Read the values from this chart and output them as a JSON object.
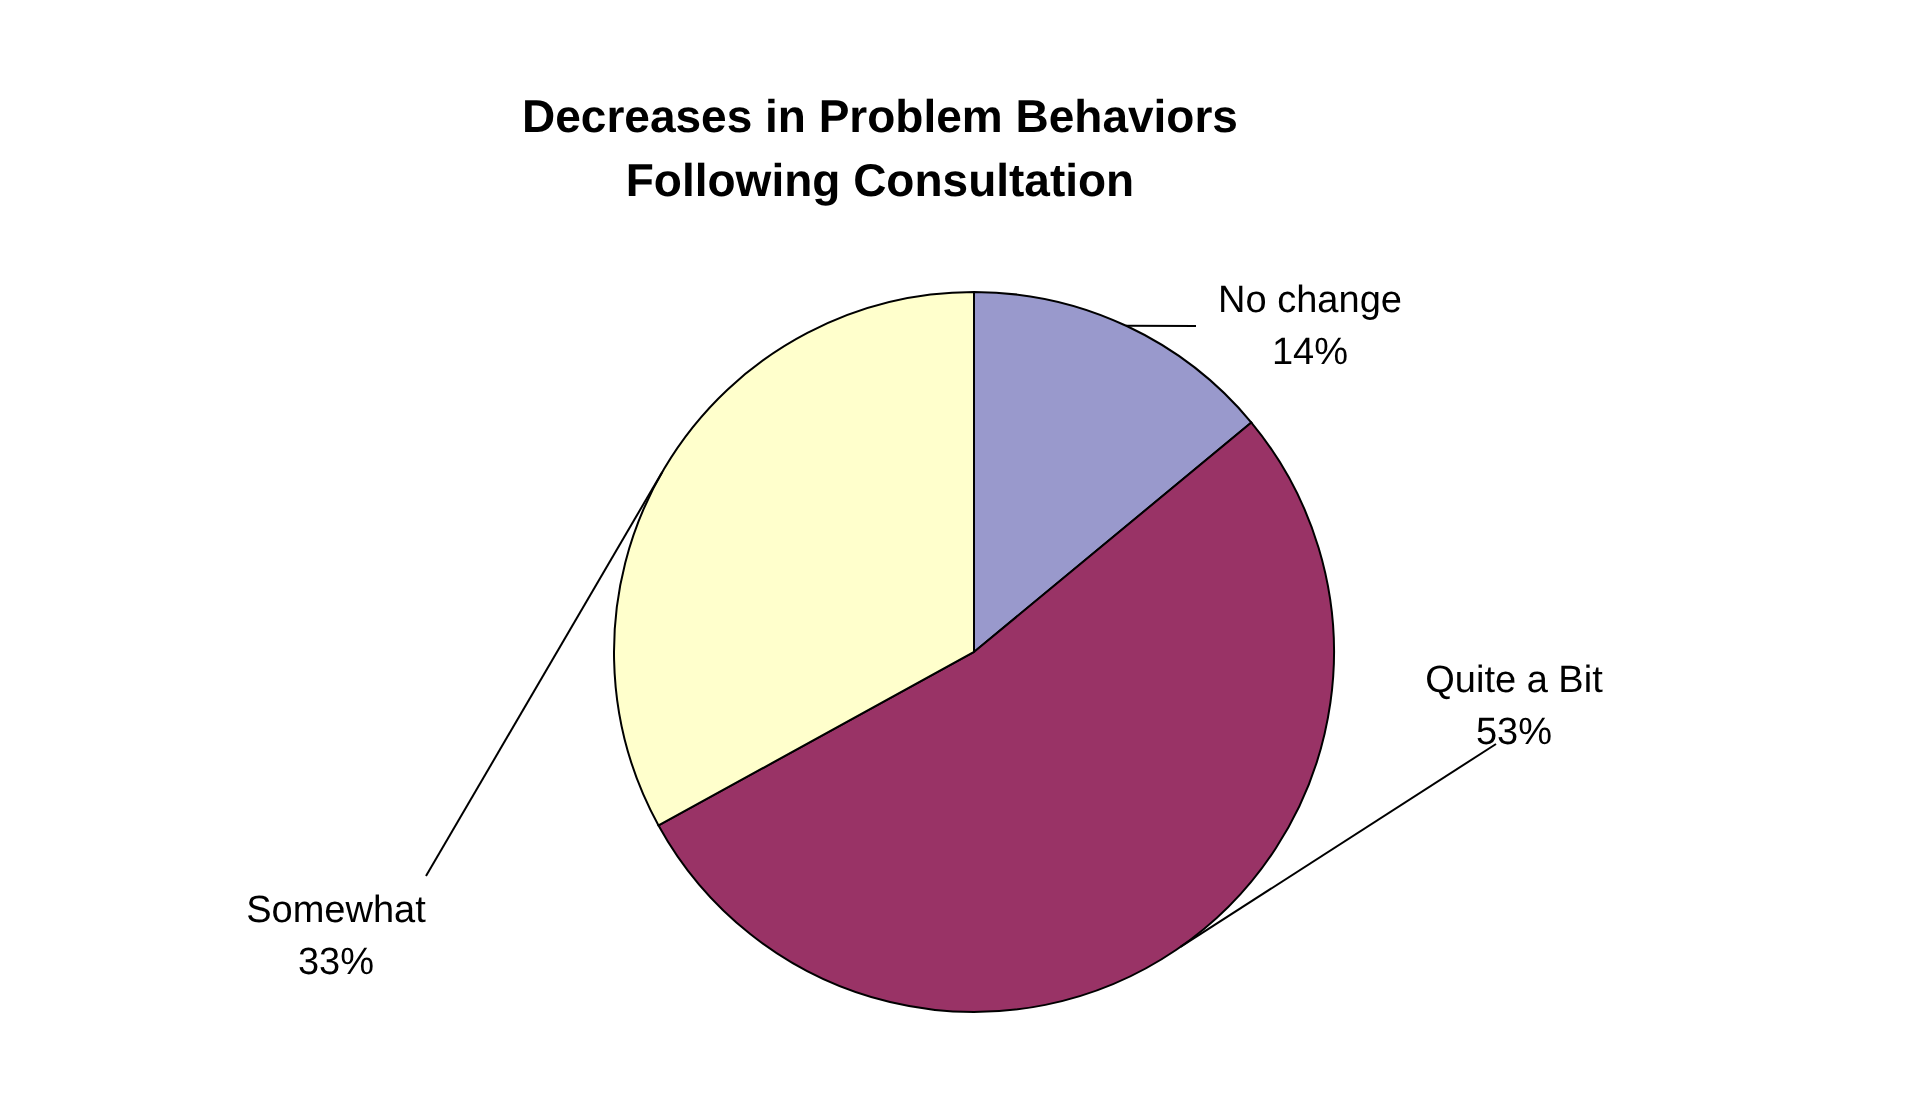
{
  "chart_data": {
    "type": "pie",
    "title": "Decreases in Problem Behaviors Following Consultation",
    "categories": [
      "No change",
      "Quite a Bit",
      "Somewhat"
    ],
    "values": [
      14,
      53,
      33
    ],
    "value_labels": [
      "14%",
      "53%",
      "33%"
    ],
    "colors": [
      "#9999cc",
      "#993366",
      "#ffffcc"
    ]
  }
}
